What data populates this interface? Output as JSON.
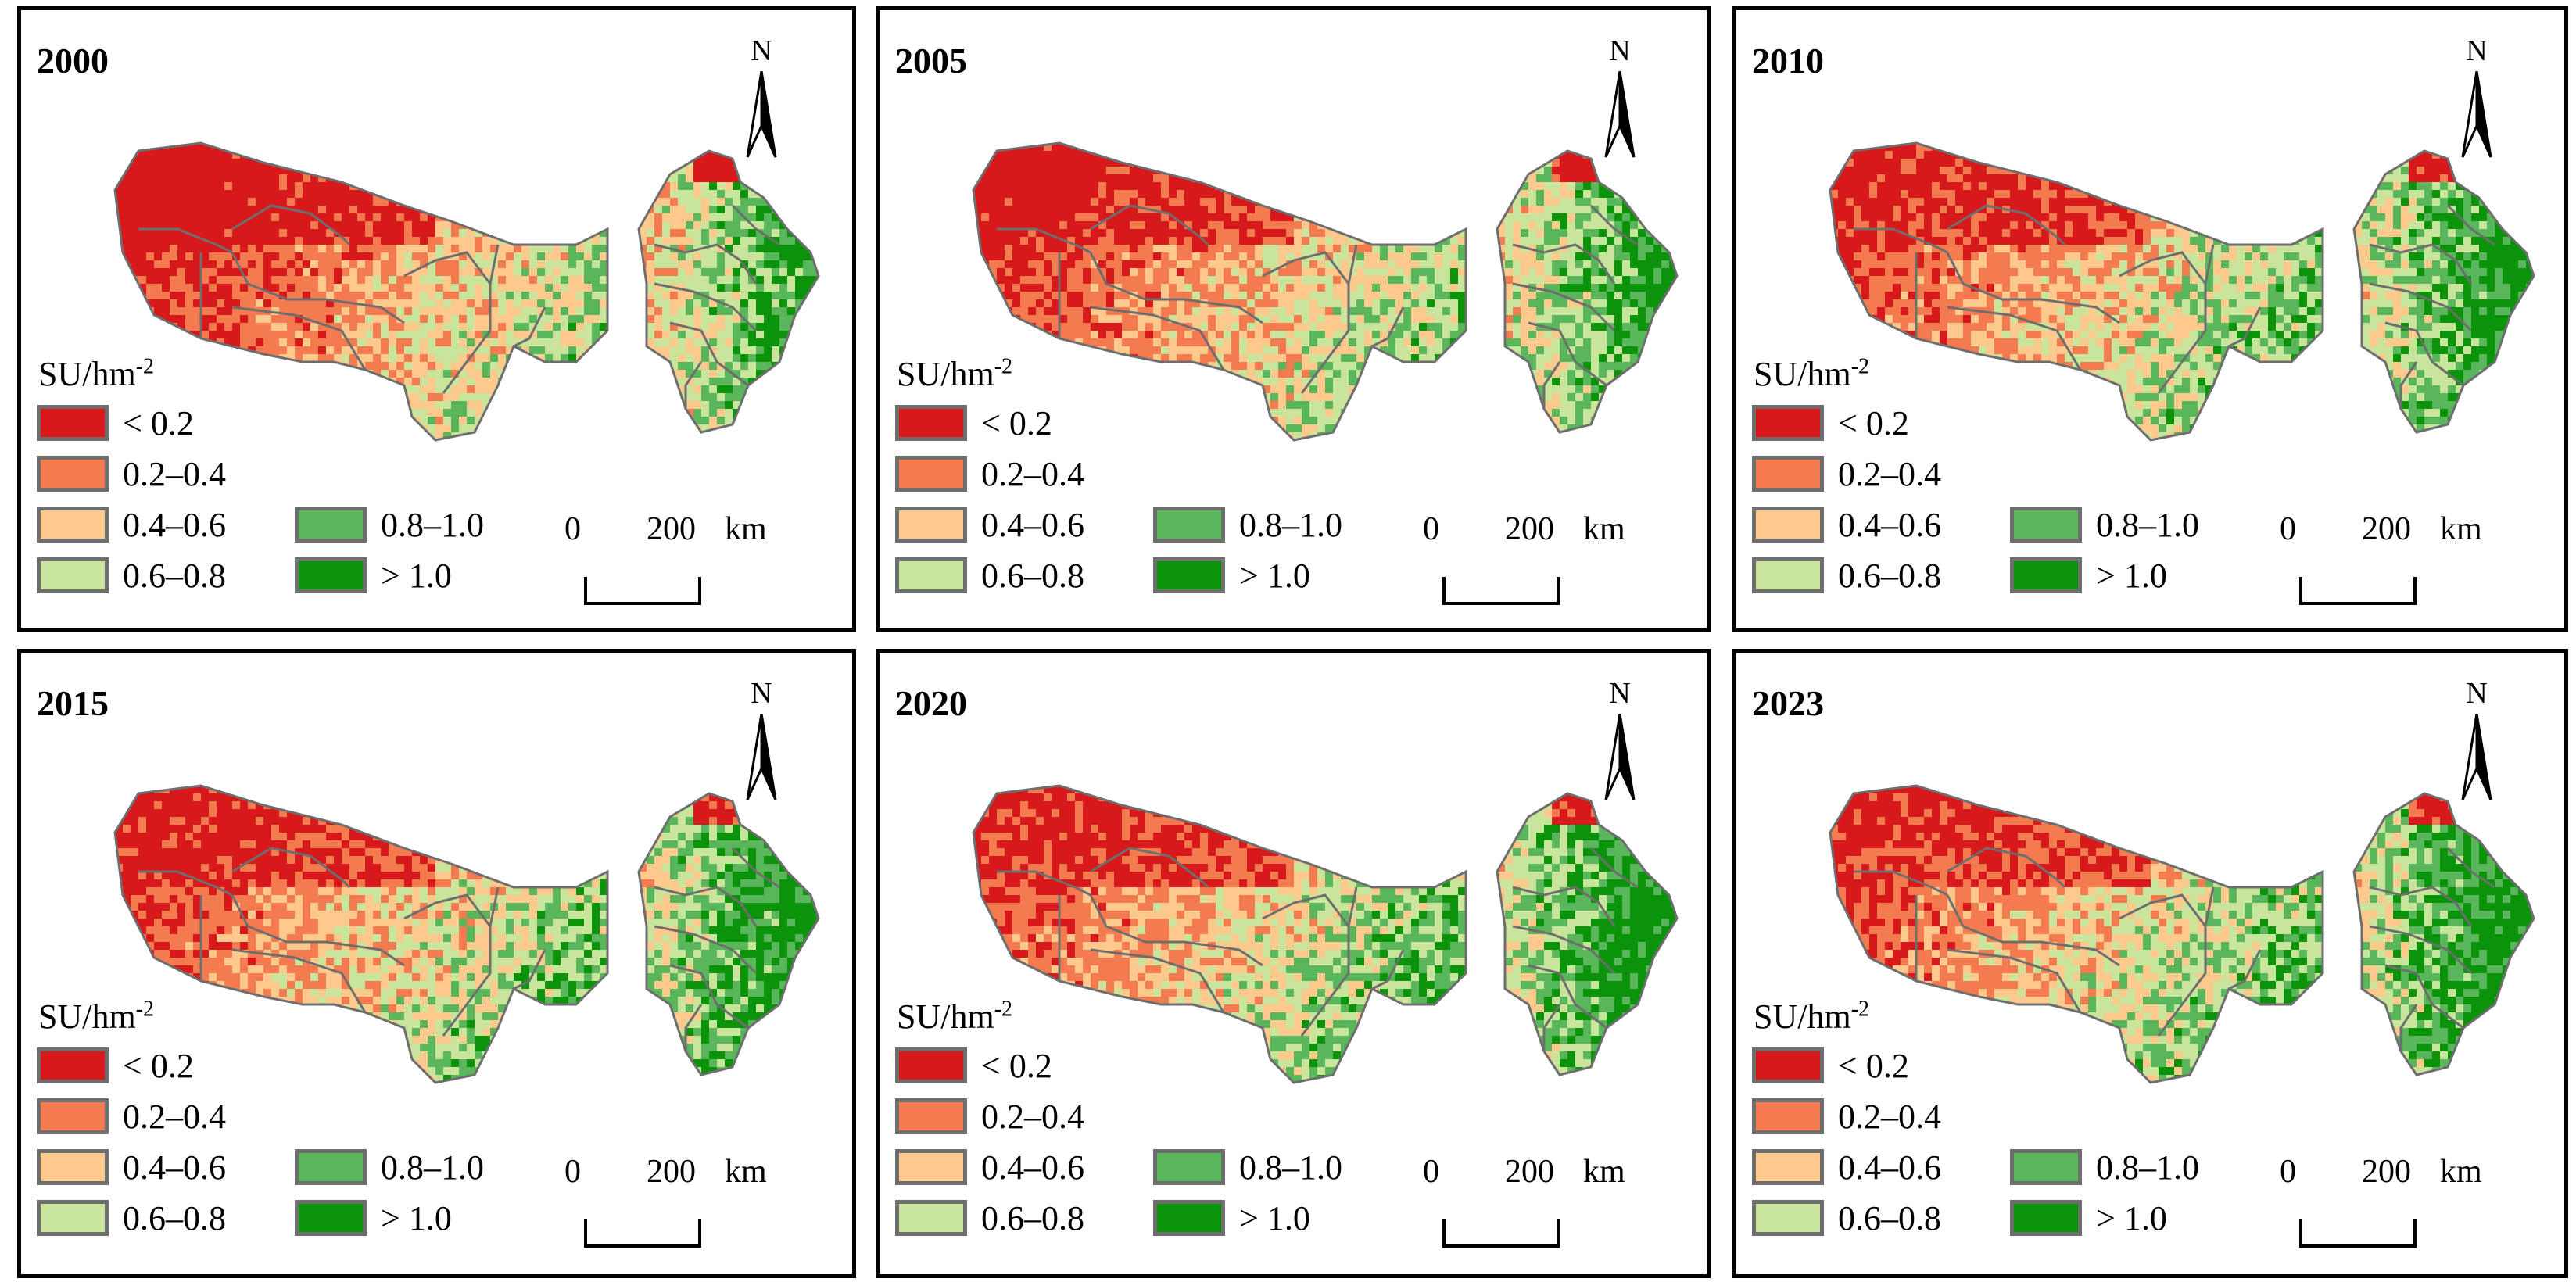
{
  "figure": {
    "legend_title": "SU/hm",
    "legend_title_exp": "-2",
    "north_label": "N",
    "scale": {
      "zero": "0",
      "max": "200",
      "unit": "km"
    },
    "legend_classes": [
      {
        "label": "< 0.2",
        "color": "#d7191c"
      },
      {
        "label": "0.2–0.4",
        "color": "#f47a4f"
      },
      {
        "label": "0.4–0.6",
        "color": "#fdc98d"
      },
      {
        "label": "0.6–0.8",
        "color": "#c9e59b"
      },
      {
        "label": "0.8–1.0",
        "color": "#5ab65a"
      },
      {
        "label": "> 1.0",
        "color": "#0b930b"
      }
    ],
    "boundary_color": "#6e6e6e",
    "panels": [
      {
        "year": "2000",
        "class_shares": [
          0.38,
          0.27,
          0.17,
          0.11,
          0.05,
          0.02
        ]
      },
      {
        "year": "2005",
        "class_shares": [
          0.36,
          0.27,
          0.16,
          0.11,
          0.06,
          0.04
        ]
      },
      {
        "year": "2010",
        "class_shares": [
          0.35,
          0.26,
          0.16,
          0.1,
          0.07,
          0.06
        ]
      },
      {
        "year": "2015",
        "class_shares": [
          0.33,
          0.27,
          0.17,
          0.1,
          0.07,
          0.06
        ]
      },
      {
        "year": "2020",
        "class_shares": [
          0.33,
          0.26,
          0.16,
          0.1,
          0.07,
          0.08
        ]
      },
      {
        "year": "2023",
        "class_shares": [
          0.32,
          0.26,
          0.17,
          0.1,
          0.07,
          0.08
        ]
      }
    ]
  }
}
